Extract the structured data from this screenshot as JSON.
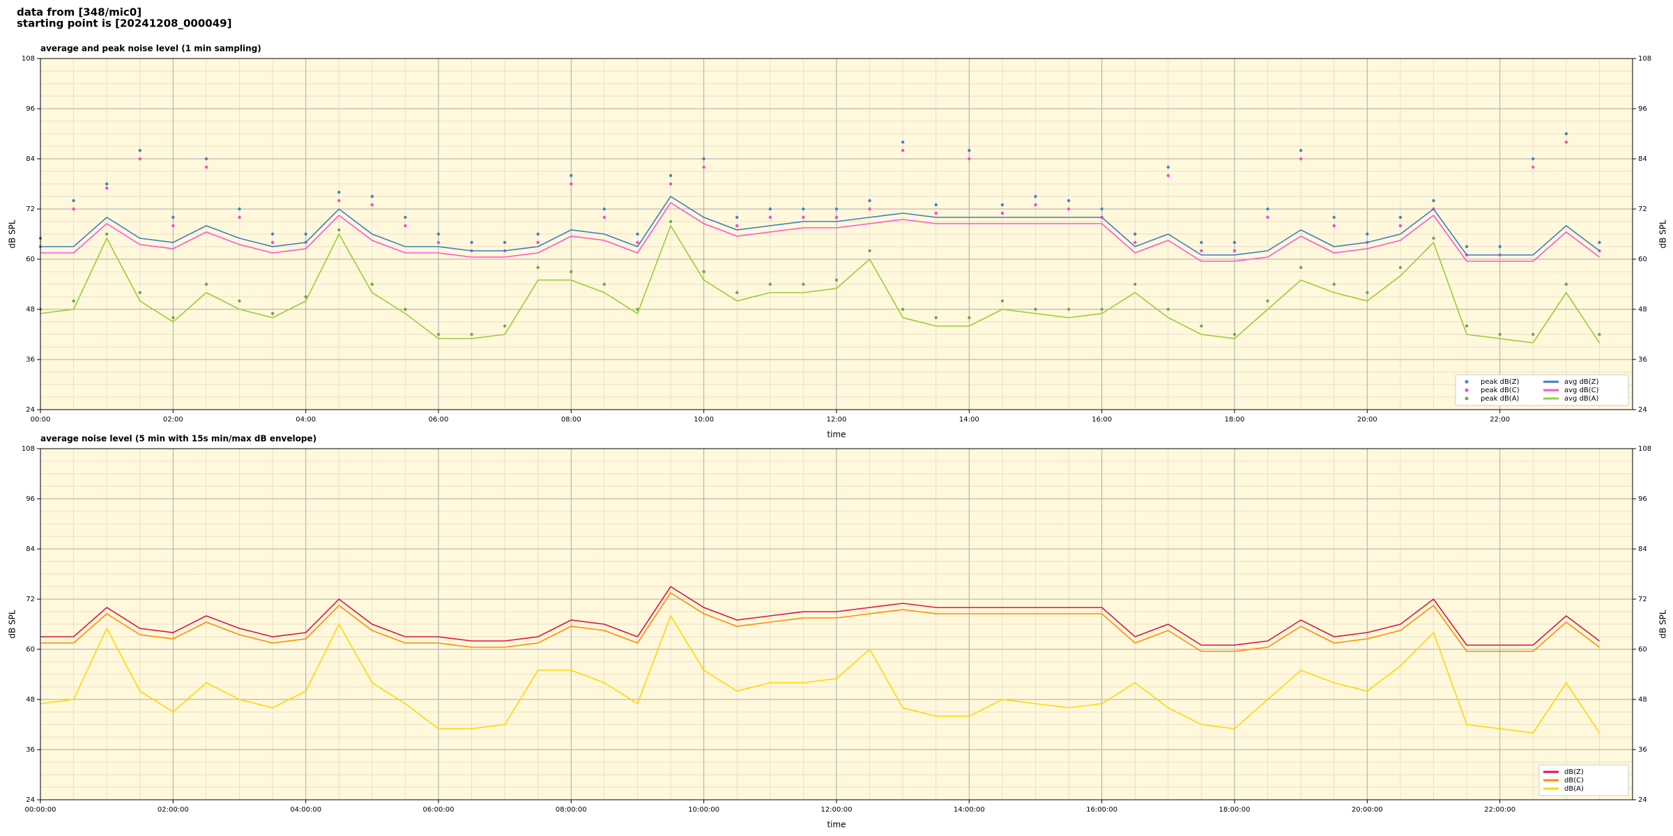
{
  "header": {
    "line1": "data from [348/mic0]",
    "line2": "starting point is [20241208_000049]"
  },
  "chart_data": [
    {
      "type": "line",
      "title": "average and peak noise level (1 min sampling)",
      "xlabel": "time",
      "ylabel": "dB SPL",
      "x": [
        0,
        0.5,
        1,
        1.5,
        2,
        2.5,
        3,
        3.5,
        4,
        4.5,
        5,
        5.5,
        6,
        6.5,
        7,
        7.5,
        8,
        8.5,
        9,
        9.5,
        10,
        10.5,
        11,
        11.5,
        12,
        12.5,
        13,
        13.5,
        14,
        14.5,
        15,
        15.5,
        16,
        16.5,
        17,
        17.5,
        18,
        18.5,
        19,
        19.5,
        20,
        20.5,
        21,
        21.5,
        22,
        22.5,
        23,
        23.5
      ],
      "xlim": [
        0,
        24
      ],
      "xticks": [
        {
          "value": 0,
          "label": "00:00"
        },
        {
          "value": 2,
          "label": "02:00"
        },
        {
          "value": 4,
          "label": "04:00"
        },
        {
          "value": 6,
          "label": "06:00"
        },
        {
          "value": 8,
          "label": "08:00"
        },
        {
          "value": 10,
          "label": "10:00"
        },
        {
          "value": 12,
          "label": "12:00"
        },
        {
          "value": 14,
          "label": "14:00"
        },
        {
          "value": 16,
          "label": "16:00"
        },
        {
          "value": 18,
          "label": "18:00"
        },
        {
          "value": 20,
          "label": "20:00"
        },
        {
          "value": 22,
          "label": "22:00"
        }
      ],
      "ylim": [
        24,
        108
      ],
      "yticks": [
        24,
        36,
        48,
        60,
        72,
        84,
        96,
        108
      ],
      "grid": true,
      "legend": "lower right",
      "legend_columns": 2,
      "series": [
        {
          "name": "peak dB(Z)",
          "color": "#3a86c8",
          "marker": true,
          "values": [
            65,
            74,
            78,
            86,
            70,
            84,
            72,
            66,
            66,
            76,
            75,
            70,
            66,
            64,
            64,
            66,
            80,
            72,
            66,
            80,
            84,
            70,
            72,
            72,
            72,
            74,
            88,
            73,
            86,
            73,
            75,
            74,
            72,
            66,
            82,
            64,
            64,
            72,
            86,
            70,
            66,
            70,
            74,
            63,
            63,
            84,
            90,
            64
          ]
        },
        {
          "name": "peak dB(C)",
          "color": "#ff44cc",
          "marker": true,
          "values": [
            63,
            72,
            77,
            84,
            68,
            82,
            70,
            64,
            64,
            74,
            73,
            68,
            64,
            62,
            62,
            64,
            78,
            70,
            64,
            78,
            82,
            68,
            70,
            70,
            70,
            72,
            86,
            71,
            84,
            71,
            73,
            72,
            70,
            64,
            80,
            62,
            62,
            70,
            84,
            68,
            64,
            68,
            72,
            61,
            61,
            82,
            88,
            62
          ]
        },
        {
          "name": "peak dB(A)",
          "color": "#6aa84f",
          "marker": true,
          "values": [
            48,
            50,
            66,
            52,
            46,
            54,
            50,
            47,
            51,
            67,
            54,
            48,
            42,
            42,
            44,
            58,
            57,
            54,
            48,
            69,
            57,
            52,
            54,
            54,
            55,
            62,
            48,
            46,
            46,
            50,
            48,
            48,
            48,
            54,
            48,
            44,
            42,
            50,
            58,
            54,
            52,
            58,
            65,
            44,
            42,
            42,
            54,
            42
          ]
        },
        {
          "name": "avg dB(Z)",
          "color": "#3a7fc0",
          "values": [
            63,
            63,
            70,
            65,
            64,
            68,
            65,
            63,
            64,
            72,
            66,
            63,
            63,
            62,
            62,
            63,
            67,
            66,
            63,
            75,
            70,
            67,
            68,
            69,
            69,
            70,
            71,
            70,
            70,
            70,
            70,
            70,
            70,
            63,
            66,
            61,
            61,
            62,
            67,
            63,
            64,
            66,
            72,
            61,
            61,
            61,
            68,
            62
          ]
        },
        {
          "name": "avg dB(C)",
          "color": "#ff55cc",
          "values": [
            61.5,
            61.5,
            68.5,
            63.5,
            62.5,
            66.5,
            63.5,
            61.5,
            62.5,
            70.5,
            64.5,
            61.5,
            61.5,
            60.5,
            60.5,
            61.5,
            65.5,
            64.5,
            61.5,
            73.5,
            68.5,
            65.5,
            66.5,
            67.5,
            67.5,
            68.5,
            69.5,
            68.5,
            68.5,
            68.5,
            68.5,
            68.5,
            68.5,
            61.5,
            64.5,
            59.5,
            59.5,
            60.5,
            65.5,
            61.5,
            62.5,
            64.5,
            70.5,
            59.5,
            59.5,
            59.5,
            66.5,
            60.5
          ]
        },
        {
          "name": "avg dB(A)",
          "color": "#9acd32",
          "values": [
            47,
            48,
            65,
            50,
            45,
            52,
            48,
            46,
            50,
            66,
            52,
            47,
            41,
            41,
            42,
            55,
            55,
            52,
            47,
            68,
            55,
            50,
            52,
            52,
            53,
            60,
            46,
            44,
            44,
            48,
            47,
            46,
            47,
            52,
            46,
            42,
            41,
            48,
            55,
            52,
            50,
            56,
            64,
            42,
            41,
            40,
            52,
            40
          ]
        }
      ]
    },
    {
      "type": "line",
      "title": "average noise level (5 min with 15s min/max dB envelope)",
      "xlabel": "time",
      "ylabel": "dB SPL",
      "x": [
        0,
        0.5,
        1,
        1.5,
        2,
        2.5,
        3,
        3.5,
        4,
        4.5,
        5,
        5.5,
        6,
        6.5,
        7,
        7.5,
        8,
        8.5,
        9,
        9.5,
        10,
        10.5,
        11,
        11.5,
        12,
        12.5,
        13,
        13.5,
        14,
        14.5,
        15,
        15.5,
        16,
        16.5,
        17,
        17.5,
        18,
        18.5,
        19,
        19.5,
        20,
        20.5,
        21,
        21.5,
        22,
        22.5,
        23,
        23.5
      ],
      "xlim": [
        0,
        24
      ],
      "xticks": [
        {
          "value": 0,
          "label": "00:00:00"
        },
        {
          "value": 2,
          "label": "02:00:00"
        },
        {
          "value": 4,
          "label": "04:00:00"
        },
        {
          "value": 6,
          "label": "06:00:00"
        },
        {
          "value": 8,
          "label": "08:00:00"
        },
        {
          "value": 10,
          "label": "10:00:00"
        },
        {
          "value": 12,
          "label": "12:00:00"
        },
        {
          "value": 14,
          "label": "14:00:00"
        },
        {
          "value": 16,
          "label": "16:00:00"
        },
        {
          "value": 18,
          "label": "18:00:00"
        },
        {
          "value": 20,
          "label": "20:00:00"
        },
        {
          "value": 22,
          "label": "22:00:00"
        }
      ],
      "ylim": [
        24,
        108
      ],
      "yticks": [
        24,
        36,
        48,
        60,
        72,
        84,
        96,
        108
      ],
      "grid": true,
      "legend": "lower right",
      "legend_columns": 1,
      "series": [
        {
          "name": "dB(Z)",
          "color": "#dc143c",
          "values": [
            63,
            63,
            70,
            65,
            64,
            68,
            65,
            63,
            64,
            72,
            66,
            63,
            63,
            62,
            62,
            63,
            67,
            66,
            63,
            75,
            70,
            67,
            68,
            69,
            69,
            70,
            71,
            70,
            70,
            70,
            70,
            70,
            70,
            63,
            66,
            61,
            61,
            62,
            67,
            63,
            64,
            66,
            72,
            61,
            61,
            61,
            68,
            62
          ]
        },
        {
          "name": "dB(C)",
          "color": "#ff8c00",
          "values": [
            61.5,
            61.5,
            68.5,
            63.5,
            62.5,
            66.5,
            63.5,
            61.5,
            62.5,
            70.5,
            64.5,
            61.5,
            61.5,
            60.5,
            60.5,
            61.5,
            65.5,
            64.5,
            61.5,
            73.5,
            68.5,
            65.5,
            66.5,
            67.5,
            67.5,
            68.5,
            69.5,
            68.5,
            68.5,
            68.5,
            68.5,
            68.5,
            68.5,
            61.5,
            64.5,
            59.5,
            59.5,
            60.5,
            65.5,
            61.5,
            62.5,
            64.5,
            70.5,
            59.5,
            59.5,
            59.5,
            66.5,
            60.5
          ]
        },
        {
          "name": "dB(A)",
          "color": "#ffd700",
          "values": [
            47,
            48,
            65,
            50,
            45,
            52,
            48,
            46,
            50,
            66,
            52,
            47,
            41,
            41,
            42,
            55,
            55,
            52,
            47,
            68,
            55,
            50,
            52,
            52,
            53,
            60,
            46,
            44,
            44,
            48,
            47,
            46,
            47,
            52,
            46,
            42,
            41,
            48,
            55,
            52,
            50,
            56,
            64,
            42,
            41,
            40,
            52,
            40
          ]
        }
      ]
    }
  ]
}
